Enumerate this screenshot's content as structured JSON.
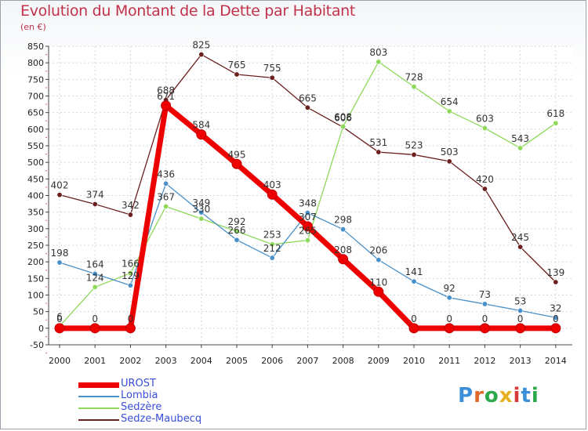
{
  "title": "Evolution du Montant de la Dette par Habitant",
  "subtitle": "(en €)",
  "logo": {
    "text": "Proxiti",
    "letter_colors": [
      "#3a8fd8",
      "#e06a2a",
      "#2aa84a",
      "#e8b020",
      "#d83a3a",
      "#3a8fd8",
      "#2aa84a"
    ]
  },
  "chart_data": {
    "type": "line",
    "x": [
      "2000",
      "2001",
      "2002",
      "2003",
      "2004",
      "2005",
      "2006",
      "2007",
      "2008",
      "2009",
      "2010",
      "2011",
      "2012",
      "2013",
      "2014"
    ],
    "ylim": [
      -50,
      850
    ],
    "yticks": [
      "-50",
      "0",
      "50",
      "100",
      "150",
      "200",
      "250",
      "300",
      "350",
      "400",
      "450",
      "500",
      "550",
      "600",
      "650",
      "700",
      "750",
      "800",
      "850"
    ],
    "grid": true,
    "legend_position": "bottom-left",
    "series": [
      {
        "name": "Sedze-Maubecq",
        "color": "#6b1f1f",
        "values": [
          402,
          374,
          342,
          688,
          825,
          765,
          755,
          665,
          606,
          531,
          523,
          503,
          420,
          245,
          139
        ],
        "labels": [
          "402",
          "374",
          "342",
          "688",
          "825",
          "765",
          "755",
          "665",
          "606",
          "531",
          "523",
          "503",
          "420",
          "245",
          "139"
        ]
      },
      {
        "name": "Sedzère",
        "color": "#8ed85a",
        "values": [
          6,
          124,
          166,
          367,
          330,
          292,
          253,
          265,
          608,
          803,
          728,
          654,
          603,
          543,
          618
        ],
        "labels": [
          "6",
          "124",
          "166",
          "367",
          "330",
          "292",
          "253",
          "265",
          "608",
          "803",
          "728",
          "654",
          "603",
          "543",
          "618"
        ]
      },
      {
        "name": "Lombia",
        "color": "#4a90c8",
        "values": [
          198,
          164,
          129,
          436,
          349,
          266,
          212,
          348,
          298,
          206,
          141,
          92,
          73,
          53,
          32
        ],
        "labels": [
          "198",
          "164",
          "129",
          "436",
          "349",
          "266",
          "212",
          "348",
          "298",
          "206",
          "141",
          "92",
          "73",
          "53",
          "32"
        ]
      },
      {
        "name": "UROST",
        "color": "#ee0000",
        "values": [
          0,
          0,
          0,
          671,
          584,
          495,
          403,
          307,
          208,
          110,
          0,
          0,
          0,
          0,
          0
        ],
        "labels": [
          "0",
          "0",
          "0",
          "671",
          "584",
          "495",
          "403",
          "307",
          "208",
          "110",
          "0",
          "0",
          "0",
          "0",
          "0"
        ]
      }
    ],
    "legend_order": [
      "UROST",
      "Lombia",
      "Sedzère",
      "Sedze-Maubecq"
    ]
  }
}
